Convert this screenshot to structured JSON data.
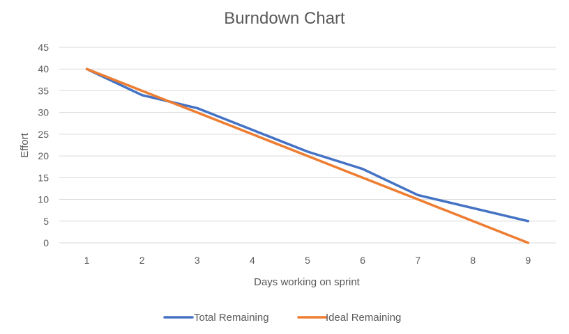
{
  "chart_data": {
    "type": "line",
    "title": "Burndown Chart",
    "xlabel": "Days working on sprint",
    "ylabel": "Effort",
    "x": [
      1,
      2,
      3,
      4,
      5,
      6,
      7,
      8,
      9
    ],
    "ylim": [
      0,
      45
    ],
    "yticks": [
      0,
      5,
      10,
      15,
      20,
      25,
      30,
      35,
      40,
      45
    ],
    "grid": true,
    "legend_position": "bottom",
    "series": [
      {
        "name": "Total Remaining",
        "color": "#4472C4",
        "values": [
          40,
          34,
          31,
          26,
          21,
          17,
          11,
          8,
          5
        ]
      },
      {
        "name": "Ideal Remaining",
        "color": "#ED7D31",
        "values": [
          40,
          35,
          30,
          25,
          20,
          15,
          10,
          5,
          0
        ]
      }
    ]
  }
}
